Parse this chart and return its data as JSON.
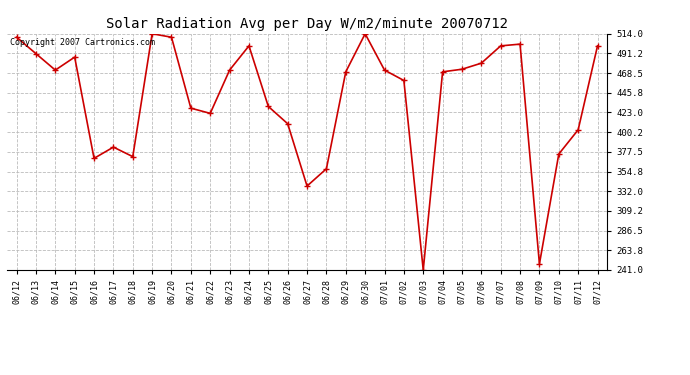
{
  "title": "Solar Radiation Avg per Day W/m2/minute 20070712",
  "copyright": "Copyright 2007 Cartronics.com",
  "x_labels": [
    "06/12",
    "06/13",
    "06/14",
    "06/15",
    "06/16",
    "06/17",
    "06/18",
    "06/19",
    "06/20",
    "06/21",
    "06/22",
    "06/23",
    "06/24",
    "06/25",
    "06/26",
    "06/27",
    "06/28",
    "06/29",
    "06/30",
    "07/01",
    "07/02",
    "07/03",
    "07/04",
    "07/05",
    "07/06",
    "07/07",
    "07/08",
    "07/09",
    "07/10",
    "07/11",
    "07/12"
  ],
  "y_values": [
    510.0,
    491.0,
    472.0,
    487.0,
    370.0,
    383.0,
    372.0,
    514.0,
    510.0,
    428.0,
    422.0,
    472.0,
    500.0,
    430.0,
    410.0,
    338.0,
    358.0,
    470.0,
    514.0,
    472.0,
    460.0,
    241.0,
    470.0,
    473.0,
    480.0,
    500.0,
    502.0,
    248.0,
    375.0,
    403.0,
    500.0
  ],
  "y_ticks": [
    241.0,
    263.8,
    286.5,
    309.2,
    332.0,
    354.8,
    377.5,
    400.2,
    423.0,
    445.8,
    468.5,
    491.2,
    514.0
  ],
  "y_min": 241.0,
  "y_max": 514.0,
  "line_color": "#cc0000",
  "marker": "+",
  "marker_size": 4,
  "line_width": 1.2,
  "bg_color": "#ffffff",
  "grid_color": "#bbbbbb",
  "title_fontsize": 10,
  "copyright_fontsize": 6,
  "tick_fontsize": 6.5,
  "xlabel_fontsize": 6
}
